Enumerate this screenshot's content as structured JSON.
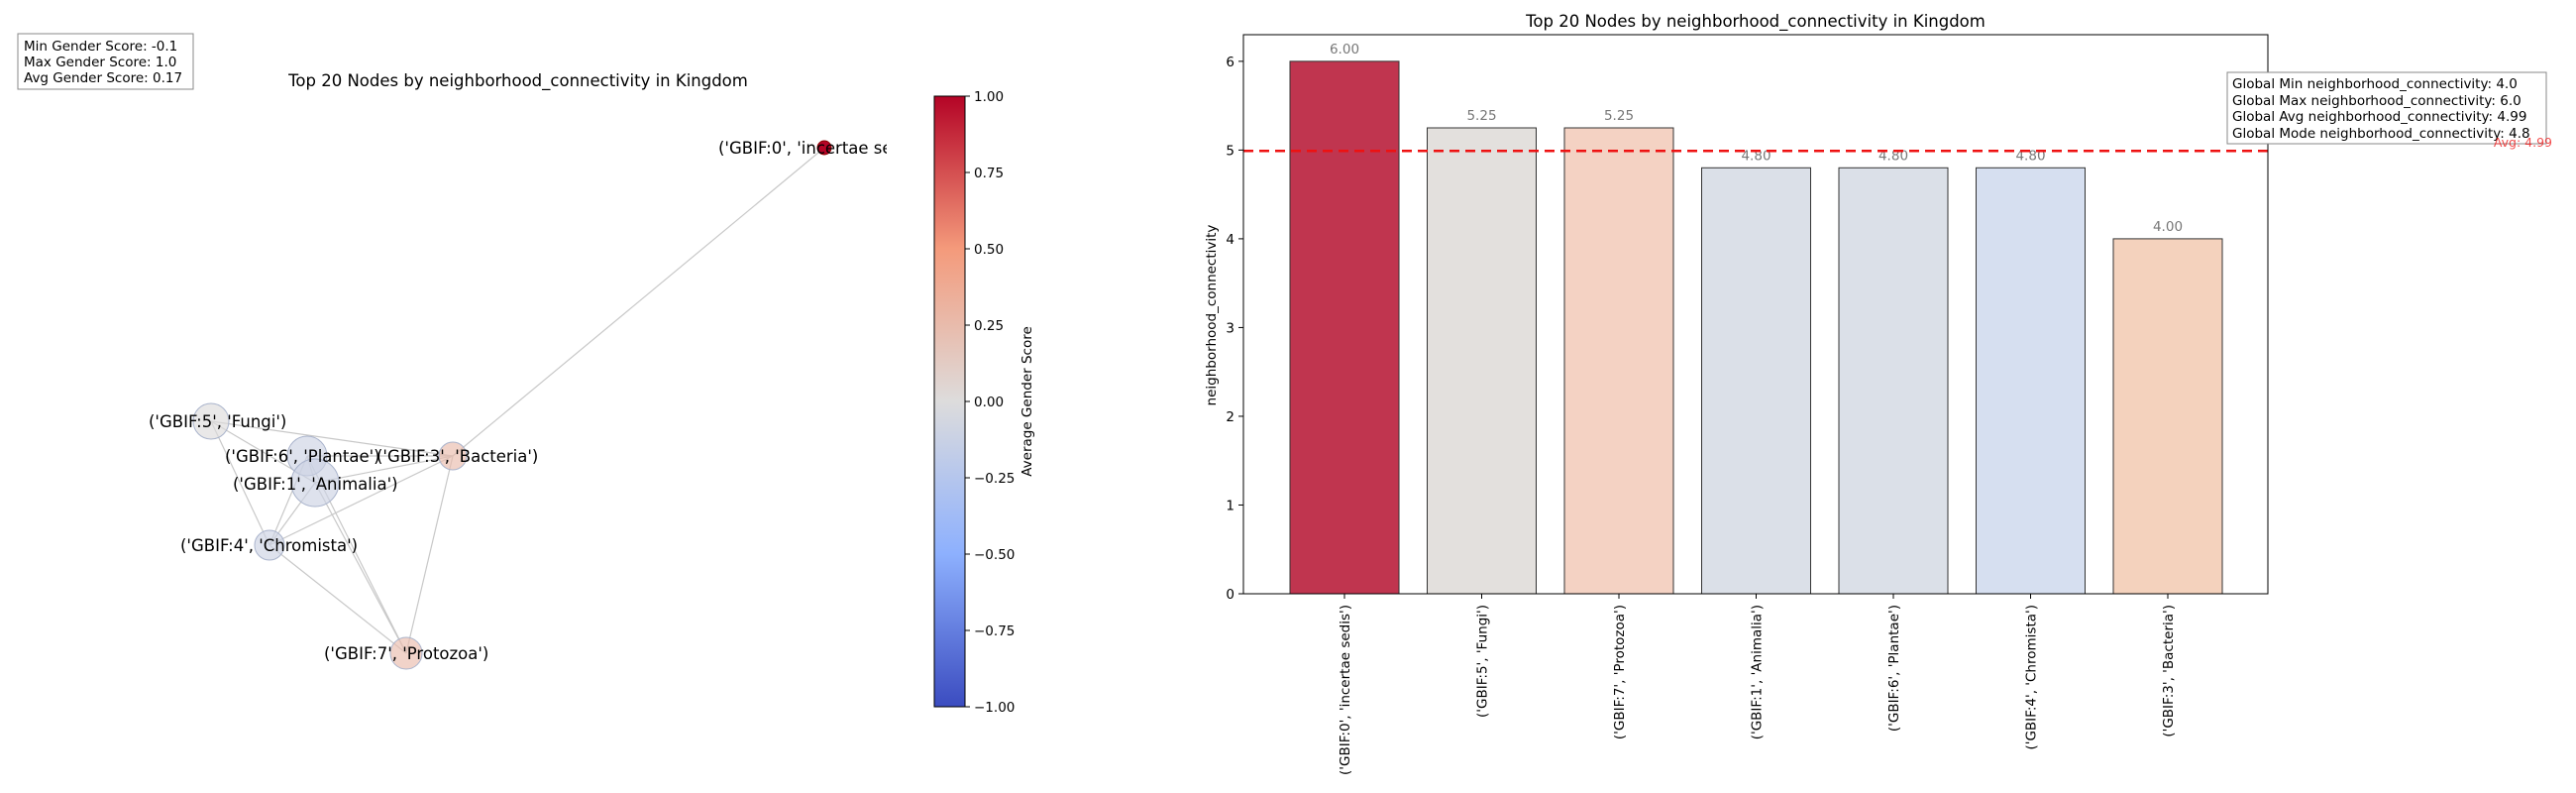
{
  "stats_box": {
    "min": "Min Gender Score: -0.1",
    "max": "Max Gender Score: 1.0",
    "avg": "Avg Gender Score: 0.17"
  },
  "colorbar": {
    "label": "Average Gender Score",
    "range": [
      -1.0,
      1.0
    ],
    "ticks": [
      "1.00",
      "0.75",
      "0.50",
      "0.25",
      "0.00",
      "−0.25",
      "−0.50",
      "−0.75",
      "−1.00"
    ],
    "colormap": "coolwarm"
  },
  "chart_data": [
    {
      "type": "network",
      "title": "Top 20 Nodes by neighborhood_connectivity in Kingdom",
      "nodes": [
        {
          "label": "('GBIF:0', 'incertae sedis')",
          "gender_score": 1.0
        },
        {
          "label": "('GBIF:5', 'Fungi')",
          "gender_score": 0.0
        },
        {
          "label": "('GBIF:6', 'Plantae')",
          "gender_score": -0.1
        },
        {
          "label": "('GBIF:3', 'Bacteria')",
          "gender_score": 0.25
        },
        {
          "label": "('GBIF:1', 'Animalia')",
          "gender_score": -0.1
        },
        {
          "label": "('GBIF:4', 'Chromista')",
          "gender_score": -0.1
        },
        {
          "label": "('GBIF:7', 'Protozoa')",
          "gender_score": 0.25
        }
      ],
      "edges": [
        [
          "('GBIF:0', 'incertae sedis')",
          "('GBIF:3', 'Bacteria')"
        ],
        [
          "('GBIF:5', 'Fungi')",
          "('GBIF:1', 'Animalia')"
        ],
        [
          "('GBIF:5', 'Fungi')",
          "('GBIF:3', 'Bacteria')"
        ],
        [
          "('GBIF:5', 'Fungi')",
          "('GBIF:4', 'Chromista')"
        ],
        [
          "('GBIF:6', 'Plantae')",
          "('GBIF:1', 'Animalia')"
        ],
        [
          "('GBIF:6', 'Plantae')",
          "('GBIF:4', 'Chromista')"
        ],
        [
          "('GBIF:6', 'Plantae')",
          "('GBIF:7', 'Protozoa')"
        ],
        [
          "('GBIF:6', 'Plantae')",
          "('GBIF:3', 'Bacteria')"
        ],
        [
          "('GBIF:1', 'Animalia')",
          "('GBIF:3', 'Bacteria')"
        ],
        [
          "('GBIF:1', 'Animalia')",
          "('GBIF:4', 'Chromista')"
        ],
        [
          "('GBIF:1', 'Animalia')",
          "('GBIF:7', 'Protozoa')"
        ],
        [
          "('GBIF:4', 'Chromista')",
          "('GBIF:7', 'Protozoa')"
        ],
        [
          "('GBIF:4', 'Chromista')",
          "('GBIF:3', 'Bacteria')"
        ],
        [
          "('GBIF:3', 'Bacteria')",
          "('GBIF:7', 'Protozoa')"
        ]
      ]
    },
    {
      "type": "bar",
      "title": "Top 20 Nodes by neighborhood_connectivity in Kingdom",
      "xlabel": "",
      "ylabel": "neighborhood_connectivity",
      "categories": [
        "('GBIF:0', 'incertae sedis')",
        "('GBIF:5', 'Fungi')",
        "('GBIF:7', 'Protozoa')",
        "('GBIF:1', 'Animalia')",
        "('GBIF:6', 'Plantae')",
        "('GBIF:4', 'Chromista')",
        "('GBIF:3', 'Bacteria')"
      ],
      "values": [
        6.0,
        5.25,
        5.25,
        4.8,
        4.8,
        4.8,
        4.0
      ],
      "value_labels": [
        "6.00",
        "5.25",
        "5.25",
        "4.80",
        "4.80",
        "4.80",
        "4.00"
      ],
      "bar_colors": [
        "#c0354f",
        "#e3e0dd",
        "#f4d2c3",
        "#dbe0e8",
        "#dbe0e8",
        "#d6dff0",
        "#f4d2bd"
      ],
      "ylim": [
        0,
        6.3
      ],
      "yticks": [
        0,
        1,
        2,
        3,
        4,
        5,
        6
      ],
      "avg_line": {
        "value": 4.99,
        "label": "Avg: 4.99",
        "color": "#ee1111"
      },
      "stats": [
        "Global Min neighborhood_connectivity: 4.0",
        "Global Max neighborhood_connectivity: 6.0",
        "Global Avg neighborhood_connectivity: 4.99",
        "Global Mode neighborhood_connectivity: 4.8"
      ]
    }
  ]
}
